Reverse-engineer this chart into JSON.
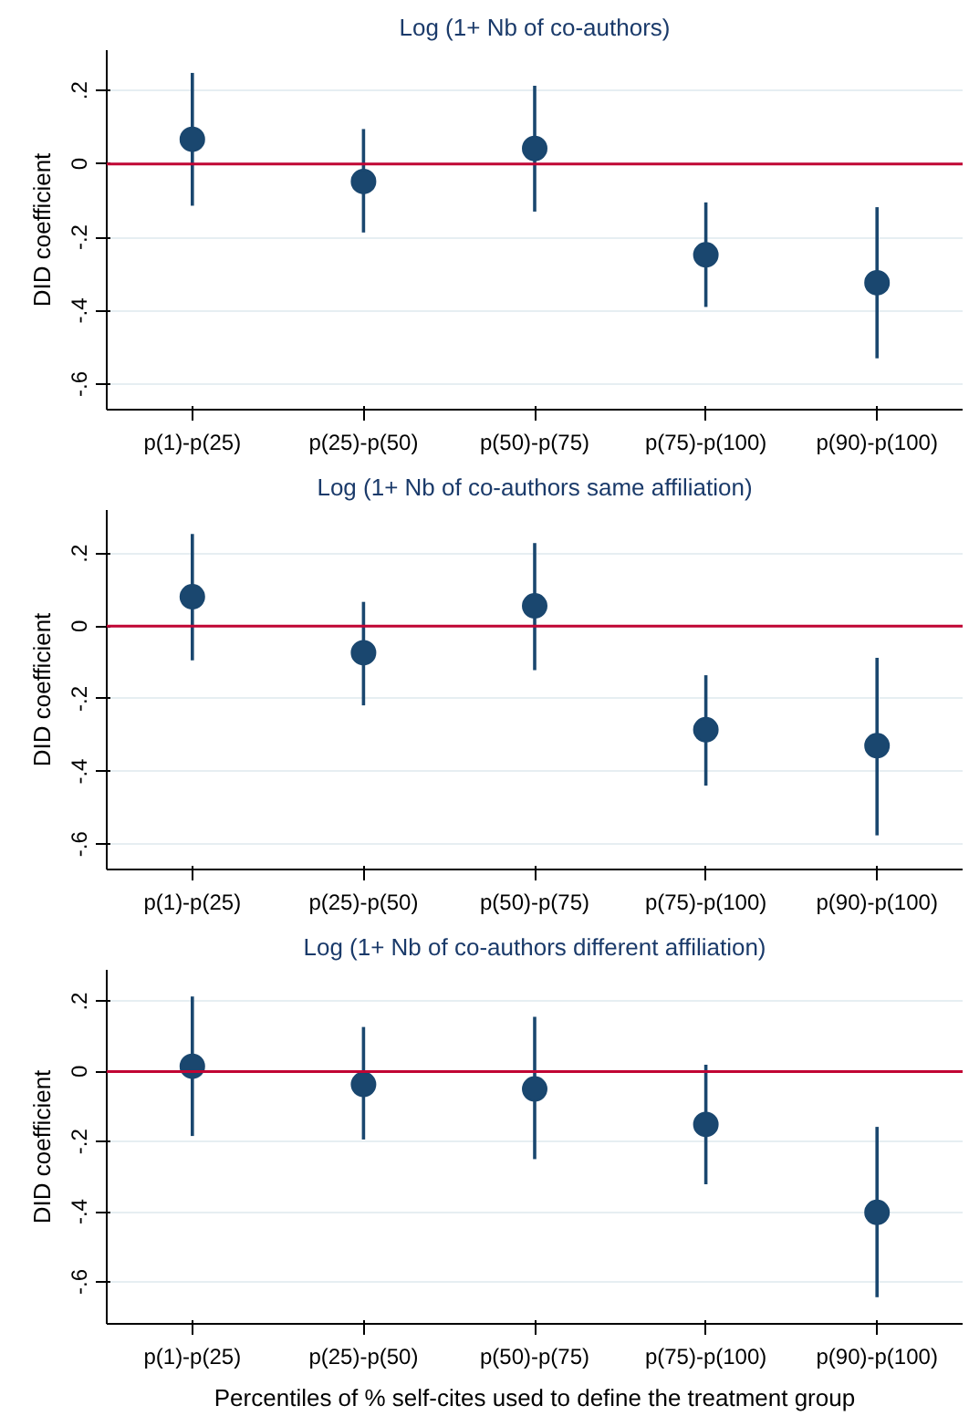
{
  "chart_data": [
    {
      "type": "scatter",
      "title": "Log (1+ Nb of co-authors)",
      "ylabel": "DID coefficient",
      "categories": [
        "p(1)-p(25)",
        "p(25)-p(50)",
        "p(50)-p(75)",
        "p(75)-p(100)",
        "p(90)-p(100)"
      ],
      "series": [
        {
          "color": "#1a476f",
          "values": [
            0.067,
            -0.048,
            0.042,
            -0.248,
            -0.324
          ],
          "errors": [
            [
              -0.114,
              0.248
            ],
            [
              -0.187,
              0.095
            ],
            [
              -0.13,
              0.213
            ],
            [
              -0.39,
              -0.105
            ],
            [
              -0.53,
              -0.118
            ]
          ]
        }
      ],
      "ylim": [
        -0.67,
        0.31
      ],
      "yticks": [
        {
          "value": -0.6,
          "label": "-.6"
        },
        {
          "value": -0.4,
          "label": "-.4"
        },
        {
          "value": -0.2,
          "label": "-.2"
        },
        0,
        {
          "value": 0.2,
          "label": ".2"
        }
      ],
      "grid": "y",
      "marker": "circle",
      "ref_lines": [
        {
          "axis": "y",
          "value": 0,
          "color": "#c10534"
        }
      ]
    },
    {
      "type": "scatter",
      "title": "Log (1+ Nb of co-authors same affiliation)",
      "ylabel": "DID coefficient",
      "categories": [
        "p(1)-p(25)",
        "p(25)-p(50)",
        "p(50)-p(75)",
        "p(75)-p(100)",
        "p(90)-p(100)"
      ],
      "series": [
        {
          "color": "#1a476f",
          "values": [
            0.081,
            -0.073,
            0.056,
            -0.285,
            -0.329
          ],
          "errors": [
            [
              -0.094,
              0.254
            ],
            [
              -0.218,
              0.067
            ],
            [
              -0.121,
              0.229
            ],
            [
              -0.439,
              -0.135
            ],
            [
              -0.576,
              -0.087
            ]
          ]
        }
      ],
      "ylim": [
        -0.67,
        0.32
      ],
      "yticks": [
        {
          "value": -0.6,
          "label": "-.6"
        },
        {
          "value": -0.4,
          "label": "-.4"
        },
        {
          "value": -0.2,
          "label": "-.2"
        },
        0,
        {
          "value": 0.2,
          "label": ".2"
        }
      ],
      "grid": "y",
      "marker": "circle",
      "ref_lines": [
        {
          "axis": "y",
          "value": 0,
          "color": "#c10534"
        }
      ]
    },
    {
      "type": "scatter",
      "title": "Log (1+ Nb of co-authors different affiliation)",
      "ylabel": "DID coefficient",
      "xlabel": "Percentiles of % self-cites used to define the treatment group",
      "categories": [
        "p(1)-p(25)",
        "p(25)-p(50)",
        "p(50)-p(75)",
        "p(75)-p(100)",
        "p(90)-p(100)"
      ],
      "series": [
        {
          "color": "#1a476f",
          "values": [
            0.015,
            -0.037,
            -0.05,
            -0.151,
            -0.402
          ],
          "errors": [
            [
              -0.184,
              0.214
            ],
            [
              -0.194,
              0.127
            ],
            [
              -0.25,
              0.156
            ],
            [
              -0.322,
              0.019
            ],
            [
              -0.644,
              -0.158
            ]
          ]
        }
      ],
      "ylim": [
        -0.72,
        0.29
      ],
      "yticks": [
        {
          "value": -0.6,
          "label": "-.6"
        },
        {
          "value": -0.4,
          "label": "-.4"
        },
        {
          "value": -0.2,
          "label": "-.2"
        },
        0,
        {
          "value": 0.2,
          "label": ".2"
        }
      ],
      "grid": "y",
      "marker": "circle",
      "ref_lines": [
        {
          "axis": "y",
          "value": 0,
          "color": "#c10534"
        }
      ]
    }
  ]
}
